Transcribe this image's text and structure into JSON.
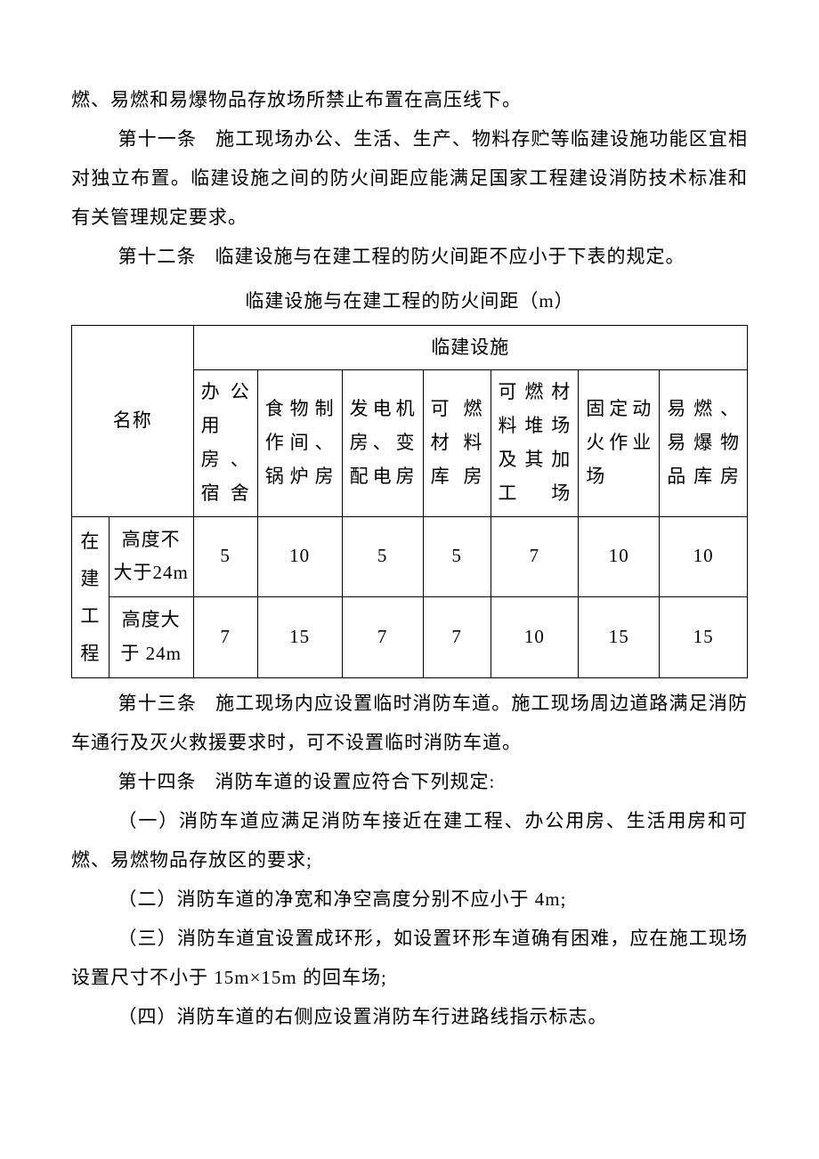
{
  "paragraphs": {
    "p0": "燃、易燃和易爆物品存放场所禁止布置在高压线下。",
    "p1_label": "第十一条",
    "p1_text": "施工现场办公、生活、生产、物料存贮等临建设施功能区宜相对独立布置。临建设施之间的防火间距应能满足国家工程建设消防技术标准和有关管理规定要求。",
    "p2_label": "第十二条",
    "p2_text": "临建设施与在建工程的防火间距不应小于下表的规定。",
    "p3_label": "第十三条",
    "p3_text": "施工现场内应设置临时消防车道。施工现场周边道路满足消防车通行及灭火救援要求时，可不设置临时消防车道。",
    "p4_label": "第十四条",
    "p4_text": "消防车道的设置应符合下列规定:",
    "p5": "（一）消防车道应满足消防车接近在建工程、办公用房、生活用房和可燃、易燃物品存放区的要求;",
    "p6": "（二）消防车道的净宽和净空高度分别不应小于 4m;",
    "p7": "（三）消防车道宜设置成环形，如设置环形车道确有困难，应在施工现场设置尺寸不小于 15m×15m 的回车场;",
    "p8": "（四）消防车道的右侧应设置消防车行进路线指示标志。"
  },
  "table": {
    "caption": "临建设施与在建工程的防火间距（m）",
    "name_header": "名称",
    "group_header": "临建设施",
    "row_group": "在建工程",
    "columns": [
      "办公用房、宿舍",
      "食物制作间、锅炉房",
      "发电机房、变配电房",
      "可燃材料库房",
      "可燃材料堆场及其加工场",
      "固定动火作业场",
      "易燃、易爆物品库房"
    ],
    "row_group_chars": [
      "在",
      "建",
      "工",
      "程"
    ],
    "rows": [
      {
        "label": "高度不大于24m",
        "values": [
          "5",
          "10",
          "5",
          "5",
          "7",
          "10",
          "10"
        ]
      },
      {
        "label": "高度大于 24m",
        "values": [
          "7",
          "15",
          "7",
          "7",
          "10",
          "15",
          "15"
        ]
      }
    ],
    "styling": {
      "border_color": "#000000",
      "background_color": "#ffffff",
      "font_size": 21,
      "text_align": "center"
    }
  }
}
